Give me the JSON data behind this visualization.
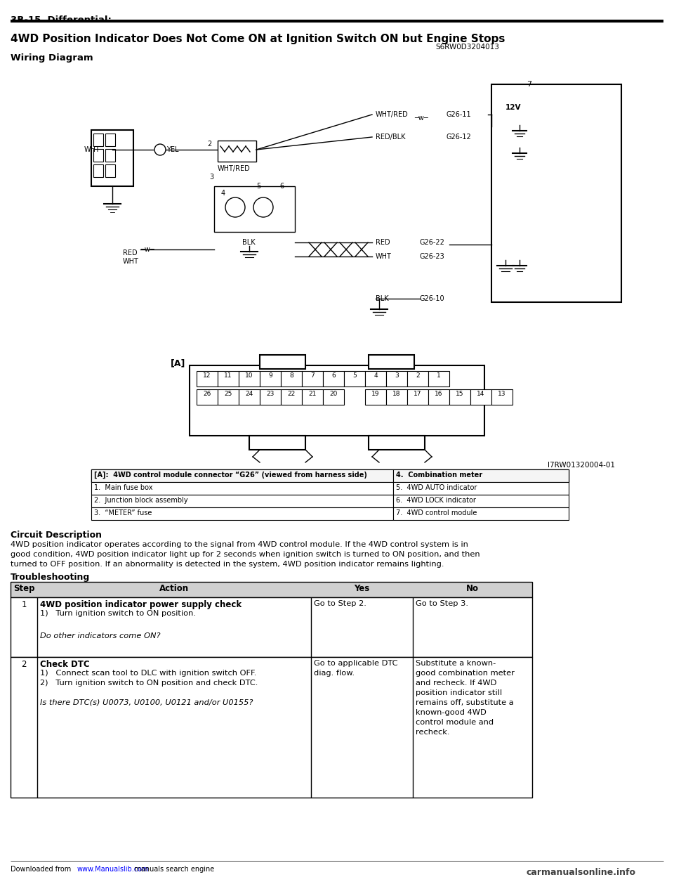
{
  "page_header": "3B-15  Differential:",
  "section_title": "4WD Position Indicator Does Not Come ON at Ignition Switch ON but Engine Stops",
  "section_code": "S6RW0D3204013",
  "wiring_diagram_label": "Wiring Diagram",
  "connector_label": "[A]",
  "image_code": "I7RW01320004-01",
  "legend_rows": [
    [
      "[A]:  4WD control module connector “G26” (viewed from harness side)",
      "4.  Combination meter"
    ],
    [
      "1.  Main fuse box",
      "5.  4WD AUTO indicator"
    ],
    [
      "2.  Junction block assembly",
      "6.  4WD LOCK indicator"
    ],
    [
      "3.  “METER” fuse",
      "7.  4WD control module"
    ]
  ],
  "circuit_description_title": "Circuit Description",
  "circuit_description_text": "4WD position indicator operates according to the signal from 4WD control module. If the 4WD control system is in\ngood condition, 4WD position indicator light up for 2 seconds when ignition switch is turned to ON position, and then\nturned to OFF position. If an abnormality is detected in the system, 4WD position indicator remains lighting.",
  "troubleshooting_title": "Troubleshooting",
  "table_headers": [
    "Step",
    "Action",
    "Yes",
    "No"
  ],
  "table_rows": [
    {
      "step": "1",
      "action_bold": "4WD position indicator power supply check",
      "action_items": [
        "1)   Turn ignition switch to ON position.",
        "",
        "Do other indicators come ON?"
      ],
      "action_italic": [
        false,
        false,
        true
      ],
      "yes": "Go to Step 2.",
      "no": "Go to Step 3."
    },
    {
      "step": "2",
      "action_bold": "Check DTC",
      "action_items": [
        "1)   Connect scan tool to DLC with ignition switch OFF.",
        "2)   Turn ignition switch to ON position and check DTC.",
        "",
        "Is there DTC(s) U0073, U0100, U0121 and/or U0155?"
      ],
      "action_italic": [
        false,
        false,
        false,
        true
      ],
      "yes": "Go to applicable DTC\ndiag. flow.",
      "no": "Substitute a known-\ngood combination meter\nand recheck. If 4WD\nposition indicator still\nremains off, substitute a\nknown-good 4WD\ncontrol module and\nrecheck."
    }
  ],
  "footer_text": "Downloaded from www.Manualslib.com  manuals search engine",
  "footer_url": "www.Manualslib.com",
  "footer_logo": "carmanualsonline.info",
  "bg_color": "#ffffff",
  "line_color": "#000000"
}
